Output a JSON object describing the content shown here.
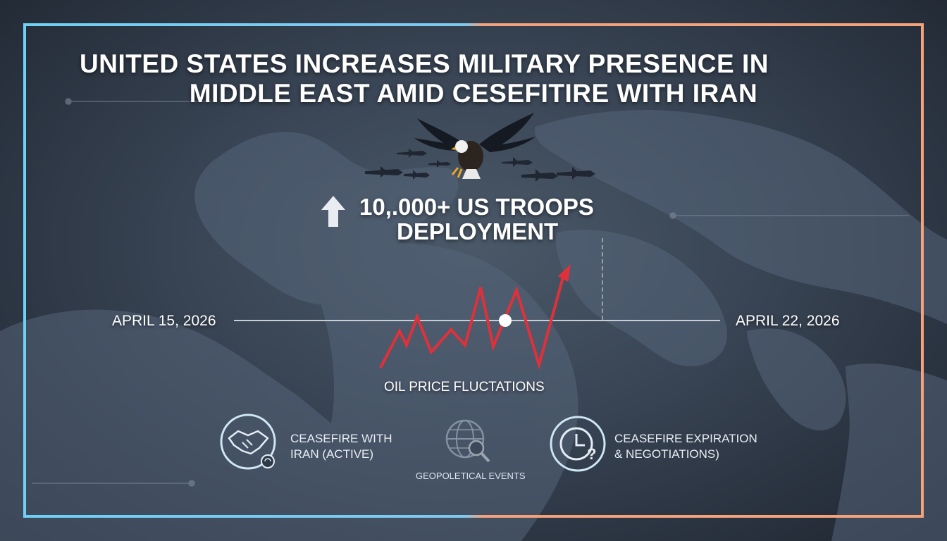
{
  "headline": {
    "line1": "UNITED STATES INCREASES MILITARY PRESENCE IN",
    "line2": "MIDDLE EAST AMID CESEFITIRE WITH IRAN"
  },
  "troops": {
    "line1": "10,.000+ US TROOPS",
    "line2": "DEPLOYMENT"
  },
  "timeline": {
    "start_date": "APRIL 15, 2026",
    "end_date": "APRIL 22, 2026"
  },
  "oil": {
    "label": "OIL PRICE FLUCTATIONS"
  },
  "icons": {
    "ceasefire": {
      "line1": "CEASEFIRE WITH",
      "line2": "IRAN (ACTIVE)",
      "icon": "handshake-icon"
    },
    "geo": {
      "label": "GEOPOLETICAL EVENTS",
      "icon": "globe-search-icon"
    },
    "expiration": {
      "line1": "CEASEFIRE EXPIRATION",
      "line2": "& NEGOTIATIONS)",
      "icon": "clock-question-icon"
    }
  },
  "colors": {
    "frame_left": "#6fd0f5",
    "frame_right": "#f4a27a",
    "oil_line": "#e0313a",
    "text": "#ffffff"
  }
}
